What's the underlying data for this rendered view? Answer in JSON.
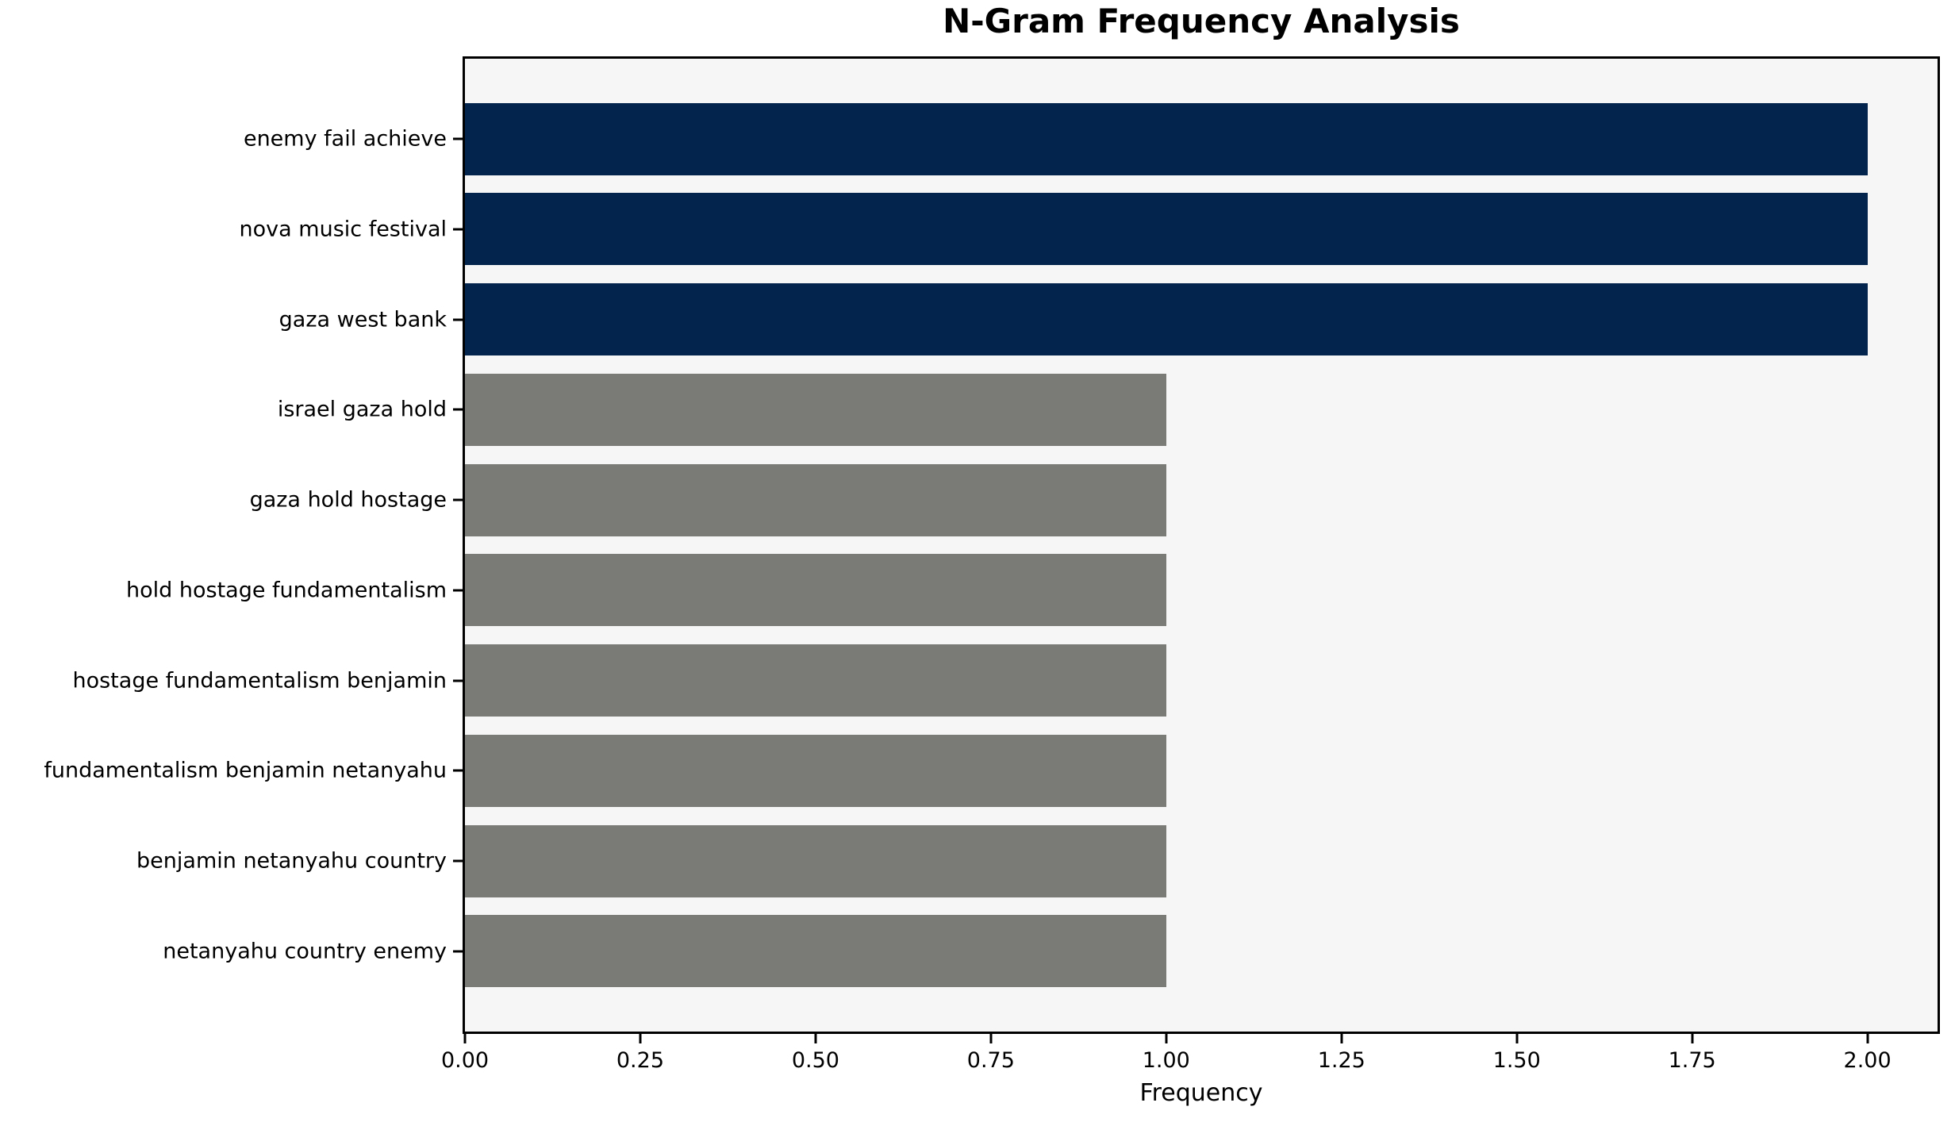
{
  "chart_data": {
    "type": "bar",
    "orientation": "horizontal",
    "title": "N-Gram Frequency Analysis",
    "xlabel": "Frequency",
    "ylabel": "",
    "categories": [
      "enemy fail achieve",
      "nova music festival",
      "gaza west bank",
      "israel gaza hold",
      "gaza hold hostage",
      "hold hostage fundamentalism",
      "hostage fundamentalism benjamin",
      "fundamentalism benjamin netanyahu",
      "benjamin netanyahu country",
      "netanyahu country enemy"
    ],
    "values": [
      2,
      2,
      2,
      1,
      1,
      1,
      1,
      1,
      1,
      1
    ],
    "bar_colors": [
      "#03244d",
      "#03244d",
      "#03244d",
      "#7a7a77",
      "#7a7a77",
      "#7a7a77",
      "#7a7a77",
      "#7a7a77",
      "#7a7a77",
      "#7a7a77"
    ],
    "xlim": [
      0,
      2.1
    ],
    "x_ticks": [
      {
        "value": 0.0,
        "label": "0.00"
      },
      {
        "value": 0.25,
        "label": "0.25"
      },
      {
        "value": 0.5,
        "label": "0.50"
      },
      {
        "value": 0.75,
        "label": "0.75"
      },
      {
        "value": 1.0,
        "label": "1.00"
      },
      {
        "value": 1.25,
        "label": "1.25"
      },
      {
        "value": 1.5,
        "label": "1.50"
      },
      {
        "value": 1.75,
        "label": "1.75"
      },
      {
        "value": 2.0,
        "label": "2.00"
      }
    ],
    "grid": false,
    "legend_position": "none",
    "colors": {
      "highlight_bar": "#03244d",
      "default_bar": "#7a7a77",
      "plot_background": "#f6f6f7",
      "figure_background": "#ffffff",
      "axis_line": "#000000",
      "text": "#000000"
    }
  }
}
